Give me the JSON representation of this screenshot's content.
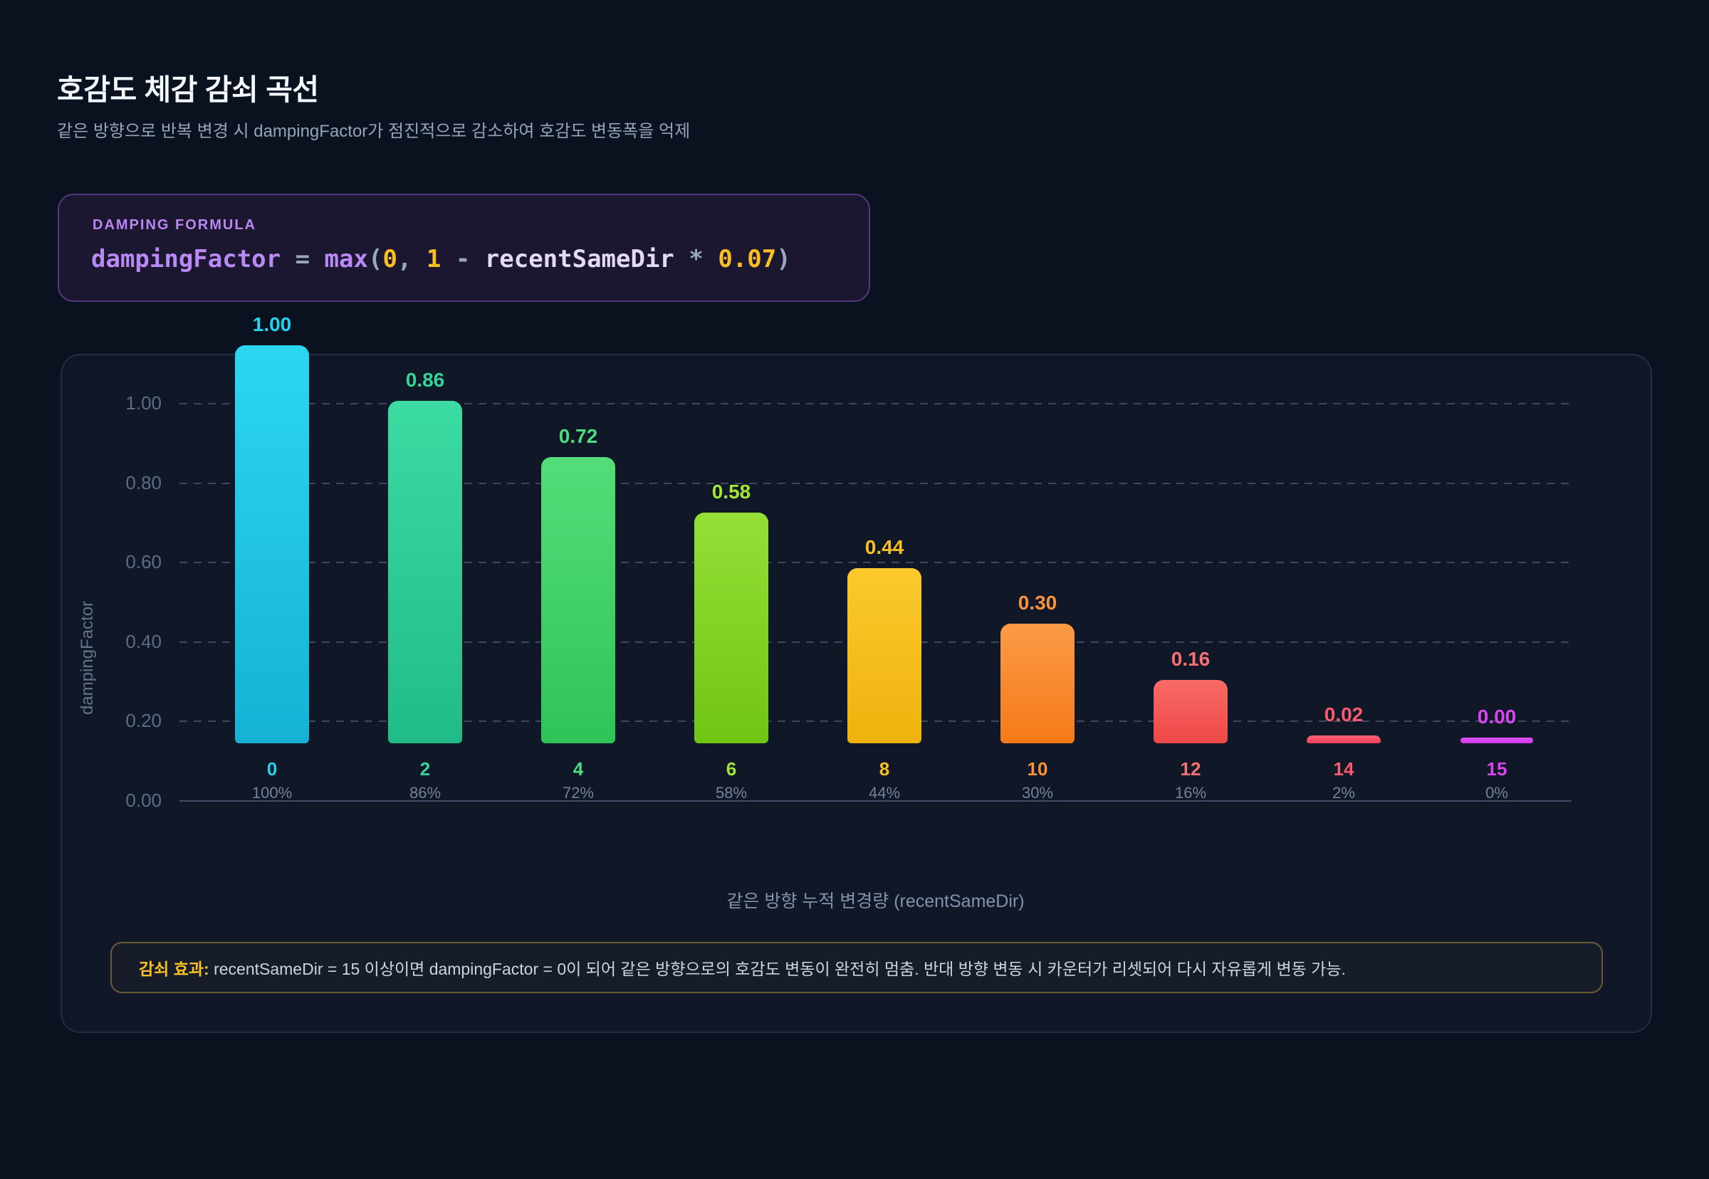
{
  "header": {
    "title": "호감도 체감 감쇠 곡선",
    "subtitle": "같은 방향으로 반복 변경 시 dampingFactor가 점진적으로 감소하여 호감도 변동폭을 억제"
  },
  "formula": {
    "label": "DAMPING FORMULA",
    "code": "dampingFactor = max(0, 1 - recentSameDir * 0.07)",
    "tokens": [
      {
        "text": "dampingFactor",
        "type": "ident"
      },
      {
        "text": " = ",
        "type": "punct"
      },
      {
        "text": "max",
        "type": "ident"
      },
      {
        "text": "(",
        "type": "punct"
      },
      {
        "text": "0",
        "type": "num"
      },
      {
        "text": ", ",
        "type": "punct"
      },
      {
        "text": "1",
        "type": "num"
      },
      {
        "text": " - ",
        "type": "punct"
      },
      {
        "text": "recentSameDir",
        "type": "var"
      },
      {
        "text": " * ",
        "type": "punct"
      },
      {
        "text": "0.07",
        "type": "num"
      },
      {
        "text": ")",
        "type": "punct"
      }
    ]
  },
  "chart_data": {
    "type": "bar",
    "title": "호감도 체감 감쇠 곡선",
    "xlabel": "같은 방향 누적 변경량 (recentSameDir)",
    "ylabel": "dampingFactor",
    "ylim": [
      0,
      1.0
    ],
    "yticks": [
      "1.00",
      "0.80",
      "0.60",
      "0.40",
      "0.20",
      "0.00"
    ],
    "grid": "horizontal-dashed",
    "legend": "none",
    "categories": [
      "0",
      "2",
      "4",
      "6",
      "8",
      "10",
      "12",
      "14",
      "15"
    ],
    "values": [
      1.0,
      0.86,
      0.72,
      0.58,
      0.44,
      0.3,
      0.16,
      0.02,
      0.0
    ],
    "bars": [
      {
        "category": "0",
        "value": 1.0,
        "value_label": "1.00",
        "percent": "100%",
        "color_top": "#2bd7f0",
        "color_bottom": "#15b2d4",
        "text_color": "#22d3ee"
      },
      {
        "category": "2",
        "value": 0.86,
        "value_label": "0.86",
        "percent": "86%",
        "color_top": "#3cdba2",
        "color_bottom": "#21bb87",
        "text_color": "#34d399"
      },
      {
        "category": "4",
        "value": 0.72,
        "value_label": "0.72",
        "percent": "72%",
        "color_top": "#54dd79",
        "color_bottom": "#2fc457",
        "text_color": "#4ade80"
      },
      {
        "category": "6",
        "value": 0.58,
        "value_label": "0.58",
        "percent": "58%",
        "color_top": "#95df37",
        "color_bottom": "#70c513",
        "text_color": "#a3e635"
      },
      {
        "category": "8",
        "value": 0.44,
        "value_label": "0.44",
        "percent": "44%",
        "color_top": "#fcc92d",
        "color_bottom": "#eeb20d",
        "text_color": "#fbbf24"
      },
      {
        "category": "10",
        "value": 0.3,
        "value_label": "0.30",
        "percent": "30%",
        "color_top": "#fb9a47",
        "color_bottom": "#f67a17",
        "text_color": "#fb923c"
      },
      {
        "category": "12",
        "value": 0.16,
        "value_label": "0.16",
        "percent": "16%",
        "color_top": "#f86b66",
        "color_bottom": "#ee4848",
        "text_color": "#f87171"
      },
      {
        "category": "14",
        "value": 0.02,
        "value_label": "0.02",
        "percent": "2%",
        "color_top": "#fb5f72",
        "color_bottom": "#f4415e",
        "text_color": "#fb5a70"
      },
      {
        "category": "15",
        "value": 0.0,
        "value_label": "0.00",
        "percent": "0%",
        "color_top": "#dd52f5",
        "color_bottom": "#cf36ea",
        "text_color": "#d946ef"
      }
    ]
  },
  "note": {
    "prefix": "감쇠 효과:",
    "body": " recentSameDir = 15 이상이면 dampingFactor = 0이 되어 같은 방향으로의 호감도 변동이 완전히 멈춤. 반대 방향 변동 시 카운터가 리셋되어 다시 자유롭게 변동 가능."
  }
}
